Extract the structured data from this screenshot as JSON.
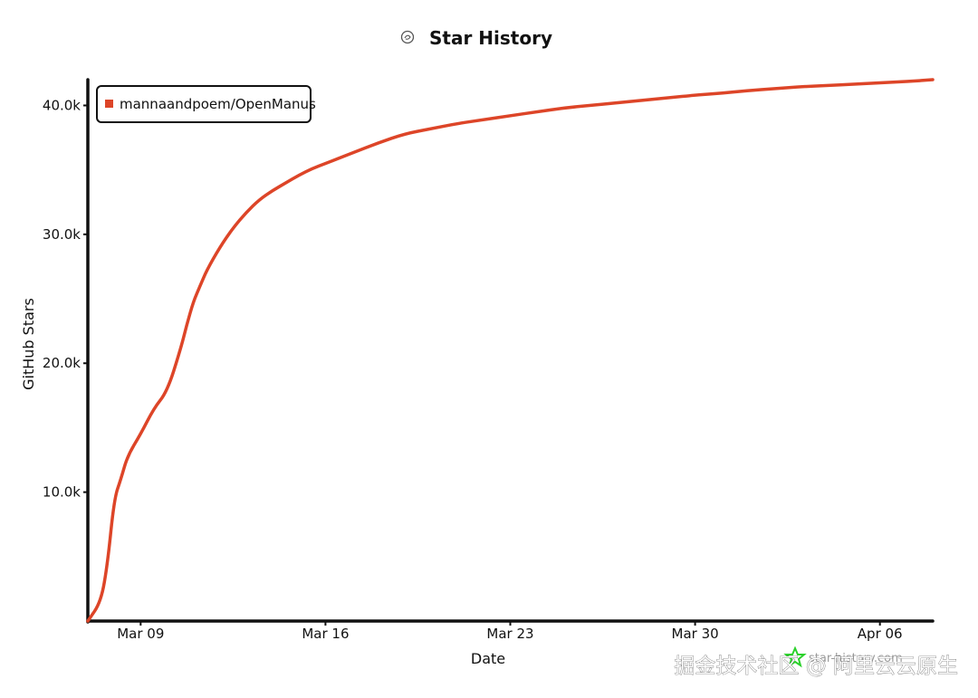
{
  "colors": {
    "series": "#dd4528",
    "axis": "#111111",
    "background": "#ffffff",
    "watermark_icon": "#2bd12b"
  },
  "watermark": {
    "site": "star-history.com",
    "overlay": "掘金技术社区 @ 阿里云云原生",
    "icon": "star-history-logo-icon"
  },
  "chart_data": {
    "type": "line",
    "title": "Star History",
    "title_icon": "star-history-logo-icon",
    "xlabel": "Date",
    "ylabel": "GitHub Stars",
    "x_ticks": [
      "Mar 09",
      "Mar 16",
      "Mar 23",
      "Mar 30",
      "Apr 06"
    ],
    "y_ticks": [
      "10.0k",
      "20.0k",
      "30.0k",
      "40.0k"
    ],
    "xlim": [
      "Mar 07",
      "Apr 08"
    ],
    "ylim": [
      0,
      42000
    ],
    "grid": false,
    "legend": {
      "position": "top-left",
      "entries": [
        "mannaandpoem/OpenManus"
      ]
    },
    "series": [
      {
        "name": "mannaandpoem/OpenManus",
        "x": [
          "Mar 07 00:00",
          "Mar 07 12:00",
          "Mar 07 18:00",
          "Mar 08 00:00",
          "Mar 08 06:00",
          "Mar 08 12:00",
          "Mar 09 00:00",
          "Mar 09 12:00",
          "Mar 10 00:00",
          "Mar 10 12:00",
          "Mar 10 18:00",
          "Mar 11 00:00",
          "Mar 11 06:00",
          "Mar 11 12:00",
          "Mar 12 00:00",
          "Mar 12 12:00",
          "Mar 13 00:00",
          "Mar 13 12:00",
          "Mar 14 00:00",
          "Mar 14 12:00",
          "Mar 15 00:00",
          "Mar 15 12:00",
          "Mar 16 00:00",
          "Mar 16 12:00",
          "Mar 17 00:00",
          "Mar 18 00:00",
          "Mar 19 00:00",
          "Mar 20 00:00",
          "Mar 21 00:00",
          "Mar 22 00:00",
          "Mar 23 00:00",
          "Mar 24 00:00",
          "Mar 25 00:00",
          "Mar 26 00:00",
          "Mar 27 00:00",
          "Mar 28 00:00",
          "Mar 29 00:00",
          "Mar 30 00:00",
          "Mar 31 00:00",
          "Apr 01 00:00",
          "Apr 02 00:00",
          "Apr 03 00:00",
          "Apr 04 00:00",
          "Apr 05 00:00",
          "Apr 06 00:00",
          "Apr 07 00:00",
          "Apr 08 00:00"
        ],
        "values": [
          0,
          1500,
          4500,
          9500,
          11000,
          12800,
          14500,
          16500,
          17800,
          21000,
          23000,
          24800,
          26000,
          27200,
          29000,
          30500,
          31700,
          32700,
          33400,
          34000,
          34600,
          35100,
          35500,
          35900,
          36300,
          37100,
          37800,
          38200,
          38600,
          38900,
          39200,
          39500,
          39800,
          40000,
          40200,
          40400,
          40600,
          40800,
          40950,
          41150,
          41300,
          41450,
          41550,
          41650,
          41750,
          41850,
          42000
        ]
      }
    ]
  }
}
